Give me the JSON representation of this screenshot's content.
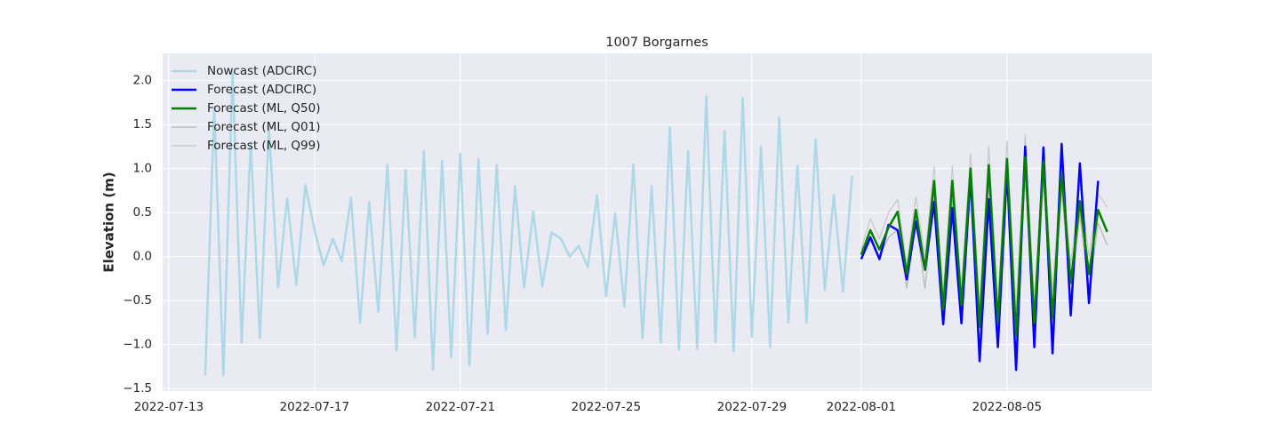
{
  "chart_data": {
    "type": "line",
    "title": "1007 Borgarnes",
    "ylabel": "Elevation (m)",
    "x": [
      "2022-07-14 00:00",
      "2022-07-14 06:00",
      "2022-07-14 12:00",
      "2022-07-14 18:00",
      "2022-07-15 00:00",
      "2022-07-15 06:00",
      "2022-07-15 12:00",
      "2022-07-15 18:00",
      "2022-07-16 00:00",
      "2022-07-16 06:00",
      "2022-07-16 12:00",
      "2022-07-16 18:00",
      "2022-07-17 00:00",
      "2022-07-17 06:00",
      "2022-07-17 12:00",
      "2022-07-17 18:00",
      "2022-07-18 00:00",
      "2022-07-18 06:00",
      "2022-07-18 12:00",
      "2022-07-18 18:00",
      "2022-07-19 00:00",
      "2022-07-19 06:00",
      "2022-07-19 12:00",
      "2022-07-19 18:00",
      "2022-07-20 00:00",
      "2022-07-20 06:00",
      "2022-07-20 12:00",
      "2022-07-20 18:00",
      "2022-07-21 00:00",
      "2022-07-21 06:00",
      "2022-07-21 12:00",
      "2022-07-21 18:00",
      "2022-07-22 00:00",
      "2022-07-22 06:00",
      "2022-07-22 12:00",
      "2022-07-22 18:00",
      "2022-07-23 00:00",
      "2022-07-23 06:00",
      "2022-07-23 12:00",
      "2022-07-23 18:00",
      "2022-07-24 00:00",
      "2022-07-24 06:00",
      "2022-07-24 12:00",
      "2022-07-24 18:00",
      "2022-07-25 00:00",
      "2022-07-25 06:00",
      "2022-07-25 12:00",
      "2022-07-25 18:00",
      "2022-07-26 00:00",
      "2022-07-26 06:00",
      "2022-07-26 12:00",
      "2022-07-26 18:00",
      "2022-07-27 00:00",
      "2022-07-27 06:00",
      "2022-07-27 12:00",
      "2022-07-27 18:00",
      "2022-07-28 00:00",
      "2022-07-28 06:00",
      "2022-07-28 12:00",
      "2022-07-28 18:00",
      "2022-07-29 00:00",
      "2022-07-29 06:00",
      "2022-07-29 12:00",
      "2022-07-29 18:00",
      "2022-07-30 00:00",
      "2022-07-30 06:00",
      "2022-07-30 12:00",
      "2022-07-30 18:00",
      "2022-07-31 00:00",
      "2022-07-31 06:00",
      "2022-07-31 12:00",
      "2022-07-31 18:00",
      "2022-08-01 00:00",
      "2022-08-01 06:00",
      "2022-08-01 12:00",
      "2022-08-01 18:00",
      "2022-08-02 00:00",
      "2022-08-02 06:00",
      "2022-08-02 12:00",
      "2022-08-02 18:00",
      "2022-08-03 00:00",
      "2022-08-03 06:00",
      "2022-08-03 12:00",
      "2022-08-03 18:00",
      "2022-08-04 00:00",
      "2022-08-04 06:00",
      "2022-08-04 12:00",
      "2022-08-04 18:00",
      "2022-08-05 00:00",
      "2022-08-05 06:00",
      "2022-08-05 12:00",
      "2022-08-05 18:00",
      "2022-08-06 00:00",
      "2022-08-06 06:00",
      "2022-08-06 12:00",
      "2022-08-06 18:00",
      "2022-08-07 00:00",
      "2022-08-07 06:00",
      "2022-08-07 12:00",
      "2022-08-07 18:00"
    ],
    "series": [
      {
        "name": "Nowcast (ADCIRC)",
        "color": "#add8e6",
        "width": 2.5,
        "values": [
          -1.35,
          1.7,
          -1.35,
          2.1,
          -0.98,
          1.3,
          -0.93,
          1.48,
          -0.35,
          0.66,
          -0.32,
          0.81,
          0.3,
          -0.1,
          0.2,
          -0.05,
          0.67,
          -0.75,
          0.62,
          -0.63,
          1.05,
          -1.07,
          0.98,
          -0.92,
          1.2,
          -1.29,
          1.09,
          -1.15,
          1.17,
          -1.24,
          1.11,
          -0.88,
          1.04,
          -0.84,
          0.8,
          -0.35,
          0.51,
          -0.34,
          0.27,
          0.21,
          0,
          0.12,
          -0.12,
          0.7,
          -0.45,
          0.49,
          -0.57,
          1.05,
          -0.93,
          0.8,
          -0.98,
          1.47,
          -1.06,
          1.2,
          -1.05,
          1.82,
          -0.97,
          1.43,
          -1.08,
          1.8,
          -0.91,
          1.25,
          -1.03,
          1.58,
          -0.75,
          1.03,
          -0.75,
          1.33,
          -0.38,
          0.7,
          -0.4,
          0.92,
          null,
          null,
          null,
          null,
          null,
          null,
          null,
          null,
          null,
          null,
          null,
          null,
          null,
          null,
          null,
          null,
          null,
          null,
          null,
          null,
          null,
          null,
          null,
          null,
          null,
          null,
          null,
          null
        ]
      },
      {
        "name": "Forecast (ADCIRC)",
        "color": "#0000ff",
        "width": 2.5,
        "values": [
          null,
          null,
          null,
          null,
          null,
          null,
          null,
          null,
          null,
          null,
          null,
          null,
          null,
          null,
          null,
          null,
          null,
          null,
          null,
          null,
          null,
          null,
          null,
          null,
          null,
          null,
          null,
          null,
          null,
          null,
          null,
          null,
          null,
          null,
          null,
          null,
          null,
          null,
          null,
          null,
          null,
          null,
          null,
          null,
          null,
          null,
          null,
          null,
          null,
          null,
          null,
          null,
          null,
          null,
          null,
          null,
          null,
          null,
          null,
          null,
          null,
          null,
          null,
          null,
          null,
          null,
          null,
          null,
          null,
          null,
          null,
          null,
          -0.03,
          0.22,
          -0.03,
          0.36,
          0.3,
          -0.26,
          0.4,
          -0.15,
          0.62,
          -0.77,
          0.55,
          -0.76,
          0.92,
          -1.19,
          0.65,
          -1.03,
          0.98,
          -1.29,
          1.25,
          -1.03,
          1.24,
          -1.1,
          1.28,
          -0.67,
          1.06,
          -0.53,
          0.86,
          null
        ]
      },
      {
        "name": "Forecast (ML, Q50)",
        "color": "#008000",
        "width": 2.5,
        "values": [
          null,
          null,
          null,
          null,
          null,
          null,
          null,
          null,
          null,
          null,
          null,
          null,
          null,
          null,
          null,
          null,
          null,
          null,
          null,
          null,
          null,
          null,
          null,
          null,
          null,
          null,
          null,
          null,
          null,
          null,
          null,
          null,
          null,
          null,
          null,
          null,
          null,
          null,
          null,
          null,
          null,
          null,
          null,
          null,
          null,
          null,
          null,
          null,
          null,
          null,
          null,
          null,
          null,
          null,
          null,
          null,
          null,
          null,
          null,
          null,
          null,
          null,
          null,
          null,
          null,
          null,
          null,
          null,
          null,
          null,
          null,
          null,
          0.02,
          0.3,
          0.08,
          0.33,
          0.51,
          -0.2,
          0.53,
          -0.15,
          0.86,
          -0.6,
          0.86,
          -0.55,
          1.0,
          -0.8,
          1.04,
          -0.75,
          1.11,
          -0.9,
          1.13,
          -0.75,
          1.08,
          -0.7,
          0.95,
          -0.3,
          0.63,
          -0.2,
          0.53,
          0.28
        ]
      },
      {
        "name": "Forecast (ML, Q01)",
        "color": "#b4b4b4",
        "width": 1.2,
        "values": [
          null,
          null,
          null,
          null,
          null,
          null,
          null,
          null,
          null,
          null,
          null,
          null,
          null,
          null,
          null,
          null,
          null,
          null,
          null,
          null,
          null,
          null,
          null,
          null,
          null,
          null,
          null,
          null,
          null,
          null,
          null,
          null,
          null,
          null,
          null,
          null,
          null,
          null,
          null,
          null,
          null,
          null,
          null,
          null,
          null,
          null,
          null,
          null,
          null,
          null,
          null,
          null,
          null,
          null,
          null,
          null,
          null,
          null,
          null,
          null,
          null,
          null,
          null,
          null,
          null,
          null,
          null,
          null,
          null,
          null,
          null,
          null,
          -0.03,
          0.18,
          0.0,
          0.22,
          0.3,
          -0.36,
          0.4,
          -0.36,
          0.7,
          -0.7,
          0.65,
          -0.7,
          0.85,
          -1.0,
          0.85,
          -0.95,
          0.92,
          -1.1,
          0.9,
          -0.95,
          0.88,
          -0.9,
          0.78,
          -0.5,
          0.48,
          -0.4,
          0.38,
          0.13
        ]
      },
      {
        "name": "Forecast (ML, Q99)",
        "color": "#c8c8c8",
        "width": 1.2,
        "values": [
          null,
          null,
          null,
          null,
          null,
          null,
          null,
          null,
          null,
          null,
          null,
          null,
          null,
          null,
          null,
          null,
          null,
          null,
          null,
          null,
          null,
          null,
          null,
          null,
          null,
          null,
          null,
          null,
          null,
          null,
          null,
          null,
          null,
          null,
          null,
          null,
          null,
          null,
          null,
          null,
          null,
          null,
          null,
          null,
          null,
          null,
          null,
          null,
          null,
          null,
          null,
          null,
          null,
          null,
          null,
          null,
          null,
          null,
          null,
          null,
          null,
          null,
          null,
          null,
          null,
          null,
          null,
          null,
          null,
          null,
          null,
          null,
          0.08,
          0.43,
          0.2,
          0.5,
          0.65,
          -0.1,
          0.68,
          0.0,
          1.02,
          -0.4,
          1.03,
          -0.35,
          1.17,
          -0.55,
          1.25,
          -0.5,
          1.31,
          -0.6,
          1.39,
          -0.5,
          1.25,
          -0.4,
          1.1,
          -0.1,
          0.82,
          0.0,
          0.72,
          0.56
        ]
      }
    ],
    "xlim": [
      "2022-07-12 20:00",
      "2022-08-08 23:30"
    ],
    "xticks": [
      "2022-07-13",
      "2022-07-17",
      "2022-07-21",
      "2022-07-25",
      "2022-07-29",
      "2022-08-01",
      "2022-08-05"
    ],
    "ylim": [
      -1.53,
      2.31
    ],
    "yticks": [
      {
        "value": -1.5,
        "label": "−1.5"
      },
      {
        "value": -1.0,
        "label": "−1.0"
      },
      {
        "value": -0.5,
        "label": "−0.5"
      },
      {
        "value": 0,
        "label": "0.0"
      },
      {
        "value": 0.5,
        "label": "0.5"
      },
      {
        "value": 1.0,
        "label": "1.0"
      },
      {
        "value": 1.5,
        "label": "1.5"
      },
      {
        "value": 2.0,
        "label": "2.0"
      }
    ],
    "grid": true,
    "legend": "upper left"
  }
}
